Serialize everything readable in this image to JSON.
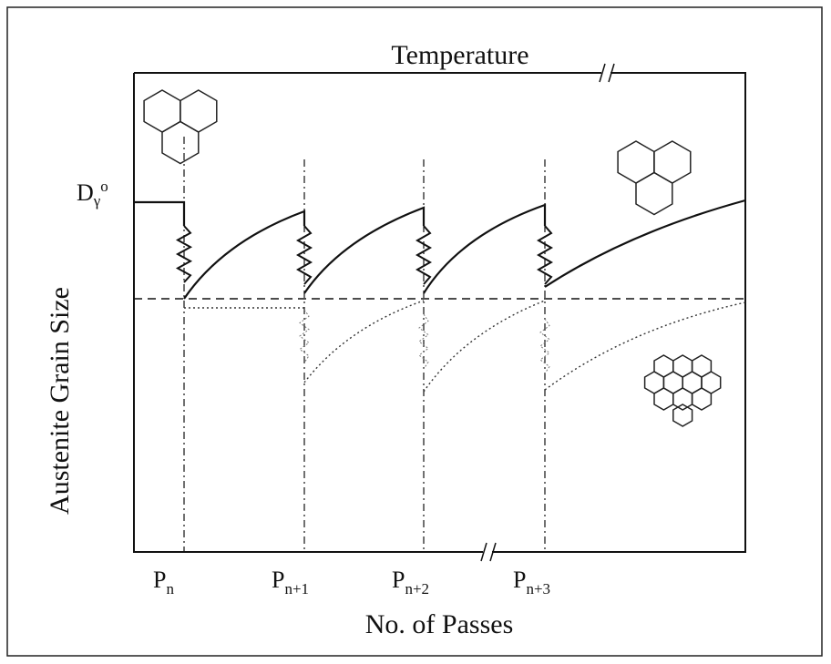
{
  "top_label": "Temperature",
  "y_axis_label": "Austenite Grain Size",
  "x_axis_label": "No. of Passes",
  "initial_size": {
    "base": "D",
    "sub": "γ",
    "sup": "o"
  },
  "passes": [
    {
      "base": "P",
      "sub": "n"
    },
    {
      "base": "P",
      "sub": "n+1"
    },
    {
      "base": "P",
      "sub": "n+2"
    },
    {
      "base": "P",
      "sub": "n+3"
    }
  ]
}
